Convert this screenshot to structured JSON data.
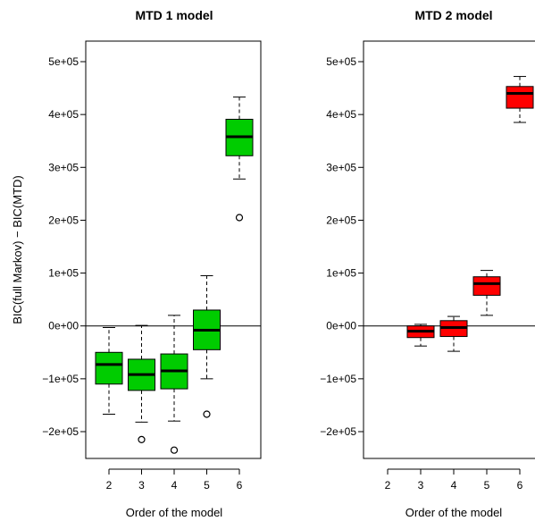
{
  "chart_data": [
    {
      "type": "boxplot",
      "title": "MTD 1 model",
      "xlabel": "Order of the model",
      "ylabel": "BIC(full Markov) − BIC(MTD)",
      "fill_color": "#00cc00",
      "categories": [
        "2",
        "3",
        "4",
        "5",
        "6"
      ],
      "ylim": [
        -250000,
        525000
      ],
      "yticks": [
        {
          "value": -200000,
          "label": "−2e+05"
        },
        {
          "value": -100000,
          "label": "−1e+05"
        },
        {
          "value": 0,
          "label": "0e+00"
        },
        {
          "value": 100000,
          "label": "1e+05"
        },
        {
          "value": 200000,
          "label": "2e+05"
        },
        {
          "value": 300000,
          "label": "3e+05"
        },
        {
          "value": 400000,
          "label": "4e+05"
        },
        {
          "value": 500000,
          "label": "5e+05"
        }
      ],
      "reference_line": 0,
      "boxes": [
        {
          "category": "2",
          "whisker_low": -167000,
          "q1": -110000,
          "median": -73000,
          "q3": -50000,
          "whisker_high": -3000,
          "outliers": []
        },
        {
          "category": "3",
          "whisker_low": -182000,
          "q1": -122000,
          "median": -92000,
          "q3": -63000,
          "whisker_high": 1000,
          "outliers": [
            -215000
          ]
        },
        {
          "category": "4",
          "whisker_low": -180000,
          "q1": -119000,
          "median": -85000,
          "q3": -53000,
          "whisker_high": 20000,
          "outliers": [
            -235000
          ]
        },
        {
          "category": "5",
          "whisker_low": -100000,
          "q1": -45000,
          "median": -8000,
          "q3": 30000,
          "whisker_high": 95000,
          "outliers": [
            -167000
          ]
        },
        {
          "category": "6",
          "whisker_low": 278000,
          "q1": 322000,
          "median": 358000,
          "q3": 391000,
          "whisker_high": 433000,
          "outliers": [
            205000
          ]
        }
      ]
    },
    {
      "type": "boxplot",
      "title": "MTD 2 model",
      "xlabel": "Order of the model",
      "ylabel": "",
      "fill_color": "#ff0000",
      "categories": [
        "2",
        "3",
        "4",
        "5",
        "6"
      ],
      "ylim": [
        -250000,
        525000
      ],
      "yticks": [
        {
          "value": -200000,
          "label": "−2e+05"
        },
        {
          "value": -100000,
          "label": "−1e+05"
        },
        {
          "value": 0,
          "label": "0e+00"
        },
        {
          "value": 100000,
          "label": "1e+05"
        },
        {
          "value": 200000,
          "label": "2e+05"
        },
        {
          "value": 300000,
          "label": "3e+05"
        },
        {
          "value": 400000,
          "label": "4e+05"
        },
        {
          "value": 500000,
          "label": "5e+05"
        }
      ],
      "reference_line": 0,
      "boxes": [
        {
          "category": "3",
          "whisker_low": -38000,
          "q1": -22000,
          "median": -10000,
          "q3": 0,
          "whisker_high": 3000,
          "outliers": []
        },
        {
          "category": "4",
          "whisker_low": -48000,
          "q1": -20000,
          "median": -3000,
          "q3": 10000,
          "whisker_high": 18000,
          "outliers": []
        },
        {
          "category": "5",
          "whisker_low": 20000,
          "q1": 58000,
          "median": 80000,
          "q3": 93000,
          "whisker_high": 105000,
          "outliers": []
        },
        {
          "category": "6",
          "whisker_low": 385000,
          "q1": 412000,
          "median": 440000,
          "q3": 453000,
          "whisker_high": 472000,
          "outliers": []
        }
      ]
    }
  ]
}
